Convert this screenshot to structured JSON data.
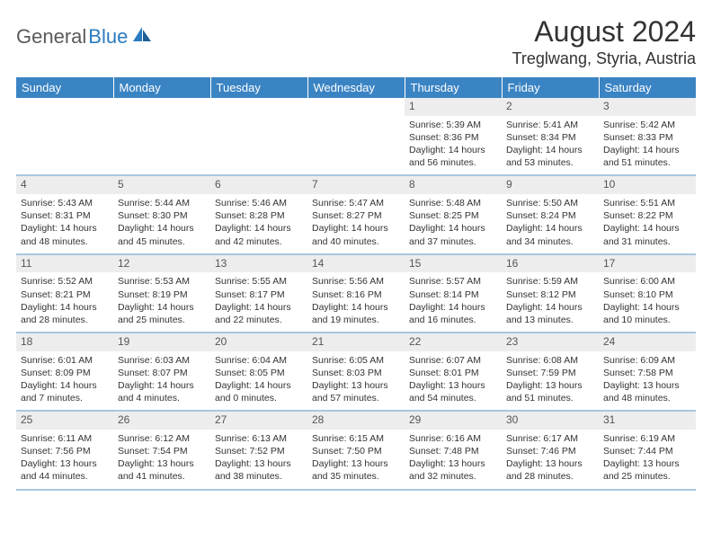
{
  "brand": {
    "part1": "General",
    "part2": "Blue"
  },
  "title": "August 2024",
  "location": "Treglwang, Styria, Austria",
  "colors": {
    "header_bg": "#3b84c4",
    "header_text": "#ffffff",
    "daynum_bg": "#ededed",
    "row_border": "#a9c6de",
    "body_text": "#333333",
    "logo_gray": "#5a5a5a",
    "logo_blue": "#2a7bbf"
  },
  "weekdays": [
    "Sunday",
    "Monday",
    "Tuesday",
    "Wednesday",
    "Thursday",
    "Friday",
    "Saturday"
  ],
  "weeks": [
    [
      {
        "n": "",
        "t": ""
      },
      {
        "n": "",
        "t": ""
      },
      {
        "n": "",
        "t": ""
      },
      {
        "n": "",
        "t": ""
      },
      {
        "n": "1",
        "t": "Sunrise: 5:39 AM\nSunset: 8:36 PM\nDaylight: 14 hours and 56 minutes."
      },
      {
        "n": "2",
        "t": "Sunrise: 5:41 AM\nSunset: 8:34 PM\nDaylight: 14 hours and 53 minutes."
      },
      {
        "n": "3",
        "t": "Sunrise: 5:42 AM\nSunset: 8:33 PM\nDaylight: 14 hours and 51 minutes."
      }
    ],
    [
      {
        "n": "4",
        "t": "Sunrise: 5:43 AM\nSunset: 8:31 PM\nDaylight: 14 hours and 48 minutes."
      },
      {
        "n": "5",
        "t": "Sunrise: 5:44 AM\nSunset: 8:30 PM\nDaylight: 14 hours and 45 minutes."
      },
      {
        "n": "6",
        "t": "Sunrise: 5:46 AM\nSunset: 8:28 PM\nDaylight: 14 hours and 42 minutes."
      },
      {
        "n": "7",
        "t": "Sunrise: 5:47 AM\nSunset: 8:27 PM\nDaylight: 14 hours and 40 minutes."
      },
      {
        "n": "8",
        "t": "Sunrise: 5:48 AM\nSunset: 8:25 PM\nDaylight: 14 hours and 37 minutes."
      },
      {
        "n": "9",
        "t": "Sunrise: 5:50 AM\nSunset: 8:24 PM\nDaylight: 14 hours and 34 minutes."
      },
      {
        "n": "10",
        "t": "Sunrise: 5:51 AM\nSunset: 8:22 PM\nDaylight: 14 hours and 31 minutes."
      }
    ],
    [
      {
        "n": "11",
        "t": "Sunrise: 5:52 AM\nSunset: 8:21 PM\nDaylight: 14 hours and 28 minutes."
      },
      {
        "n": "12",
        "t": "Sunrise: 5:53 AM\nSunset: 8:19 PM\nDaylight: 14 hours and 25 minutes."
      },
      {
        "n": "13",
        "t": "Sunrise: 5:55 AM\nSunset: 8:17 PM\nDaylight: 14 hours and 22 minutes."
      },
      {
        "n": "14",
        "t": "Sunrise: 5:56 AM\nSunset: 8:16 PM\nDaylight: 14 hours and 19 minutes."
      },
      {
        "n": "15",
        "t": "Sunrise: 5:57 AM\nSunset: 8:14 PM\nDaylight: 14 hours and 16 minutes."
      },
      {
        "n": "16",
        "t": "Sunrise: 5:59 AM\nSunset: 8:12 PM\nDaylight: 14 hours and 13 minutes."
      },
      {
        "n": "17",
        "t": "Sunrise: 6:00 AM\nSunset: 8:10 PM\nDaylight: 14 hours and 10 minutes."
      }
    ],
    [
      {
        "n": "18",
        "t": "Sunrise: 6:01 AM\nSunset: 8:09 PM\nDaylight: 14 hours and 7 minutes."
      },
      {
        "n": "19",
        "t": "Sunrise: 6:03 AM\nSunset: 8:07 PM\nDaylight: 14 hours and 4 minutes."
      },
      {
        "n": "20",
        "t": "Sunrise: 6:04 AM\nSunset: 8:05 PM\nDaylight: 14 hours and 0 minutes."
      },
      {
        "n": "21",
        "t": "Sunrise: 6:05 AM\nSunset: 8:03 PM\nDaylight: 13 hours and 57 minutes."
      },
      {
        "n": "22",
        "t": "Sunrise: 6:07 AM\nSunset: 8:01 PM\nDaylight: 13 hours and 54 minutes."
      },
      {
        "n": "23",
        "t": "Sunrise: 6:08 AM\nSunset: 7:59 PM\nDaylight: 13 hours and 51 minutes."
      },
      {
        "n": "24",
        "t": "Sunrise: 6:09 AM\nSunset: 7:58 PM\nDaylight: 13 hours and 48 minutes."
      }
    ],
    [
      {
        "n": "25",
        "t": "Sunrise: 6:11 AM\nSunset: 7:56 PM\nDaylight: 13 hours and 44 minutes."
      },
      {
        "n": "26",
        "t": "Sunrise: 6:12 AM\nSunset: 7:54 PM\nDaylight: 13 hours and 41 minutes."
      },
      {
        "n": "27",
        "t": "Sunrise: 6:13 AM\nSunset: 7:52 PM\nDaylight: 13 hours and 38 minutes."
      },
      {
        "n": "28",
        "t": "Sunrise: 6:15 AM\nSunset: 7:50 PM\nDaylight: 13 hours and 35 minutes."
      },
      {
        "n": "29",
        "t": "Sunrise: 6:16 AM\nSunset: 7:48 PM\nDaylight: 13 hours and 32 minutes."
      },
      {
        "n": "30",
        "t": "Sunrise: 6:17 AM\nSunset: 7:46 PM\nDaylight: 13 hours and 28 minutes."
      },
      {
        "n": "31",
        "t": "Sunrise: 6:19 AM\nSunset: 7:44 PM\nDaylight: 13 hours and 25 minutes."
      }
    ]
  ]
}
